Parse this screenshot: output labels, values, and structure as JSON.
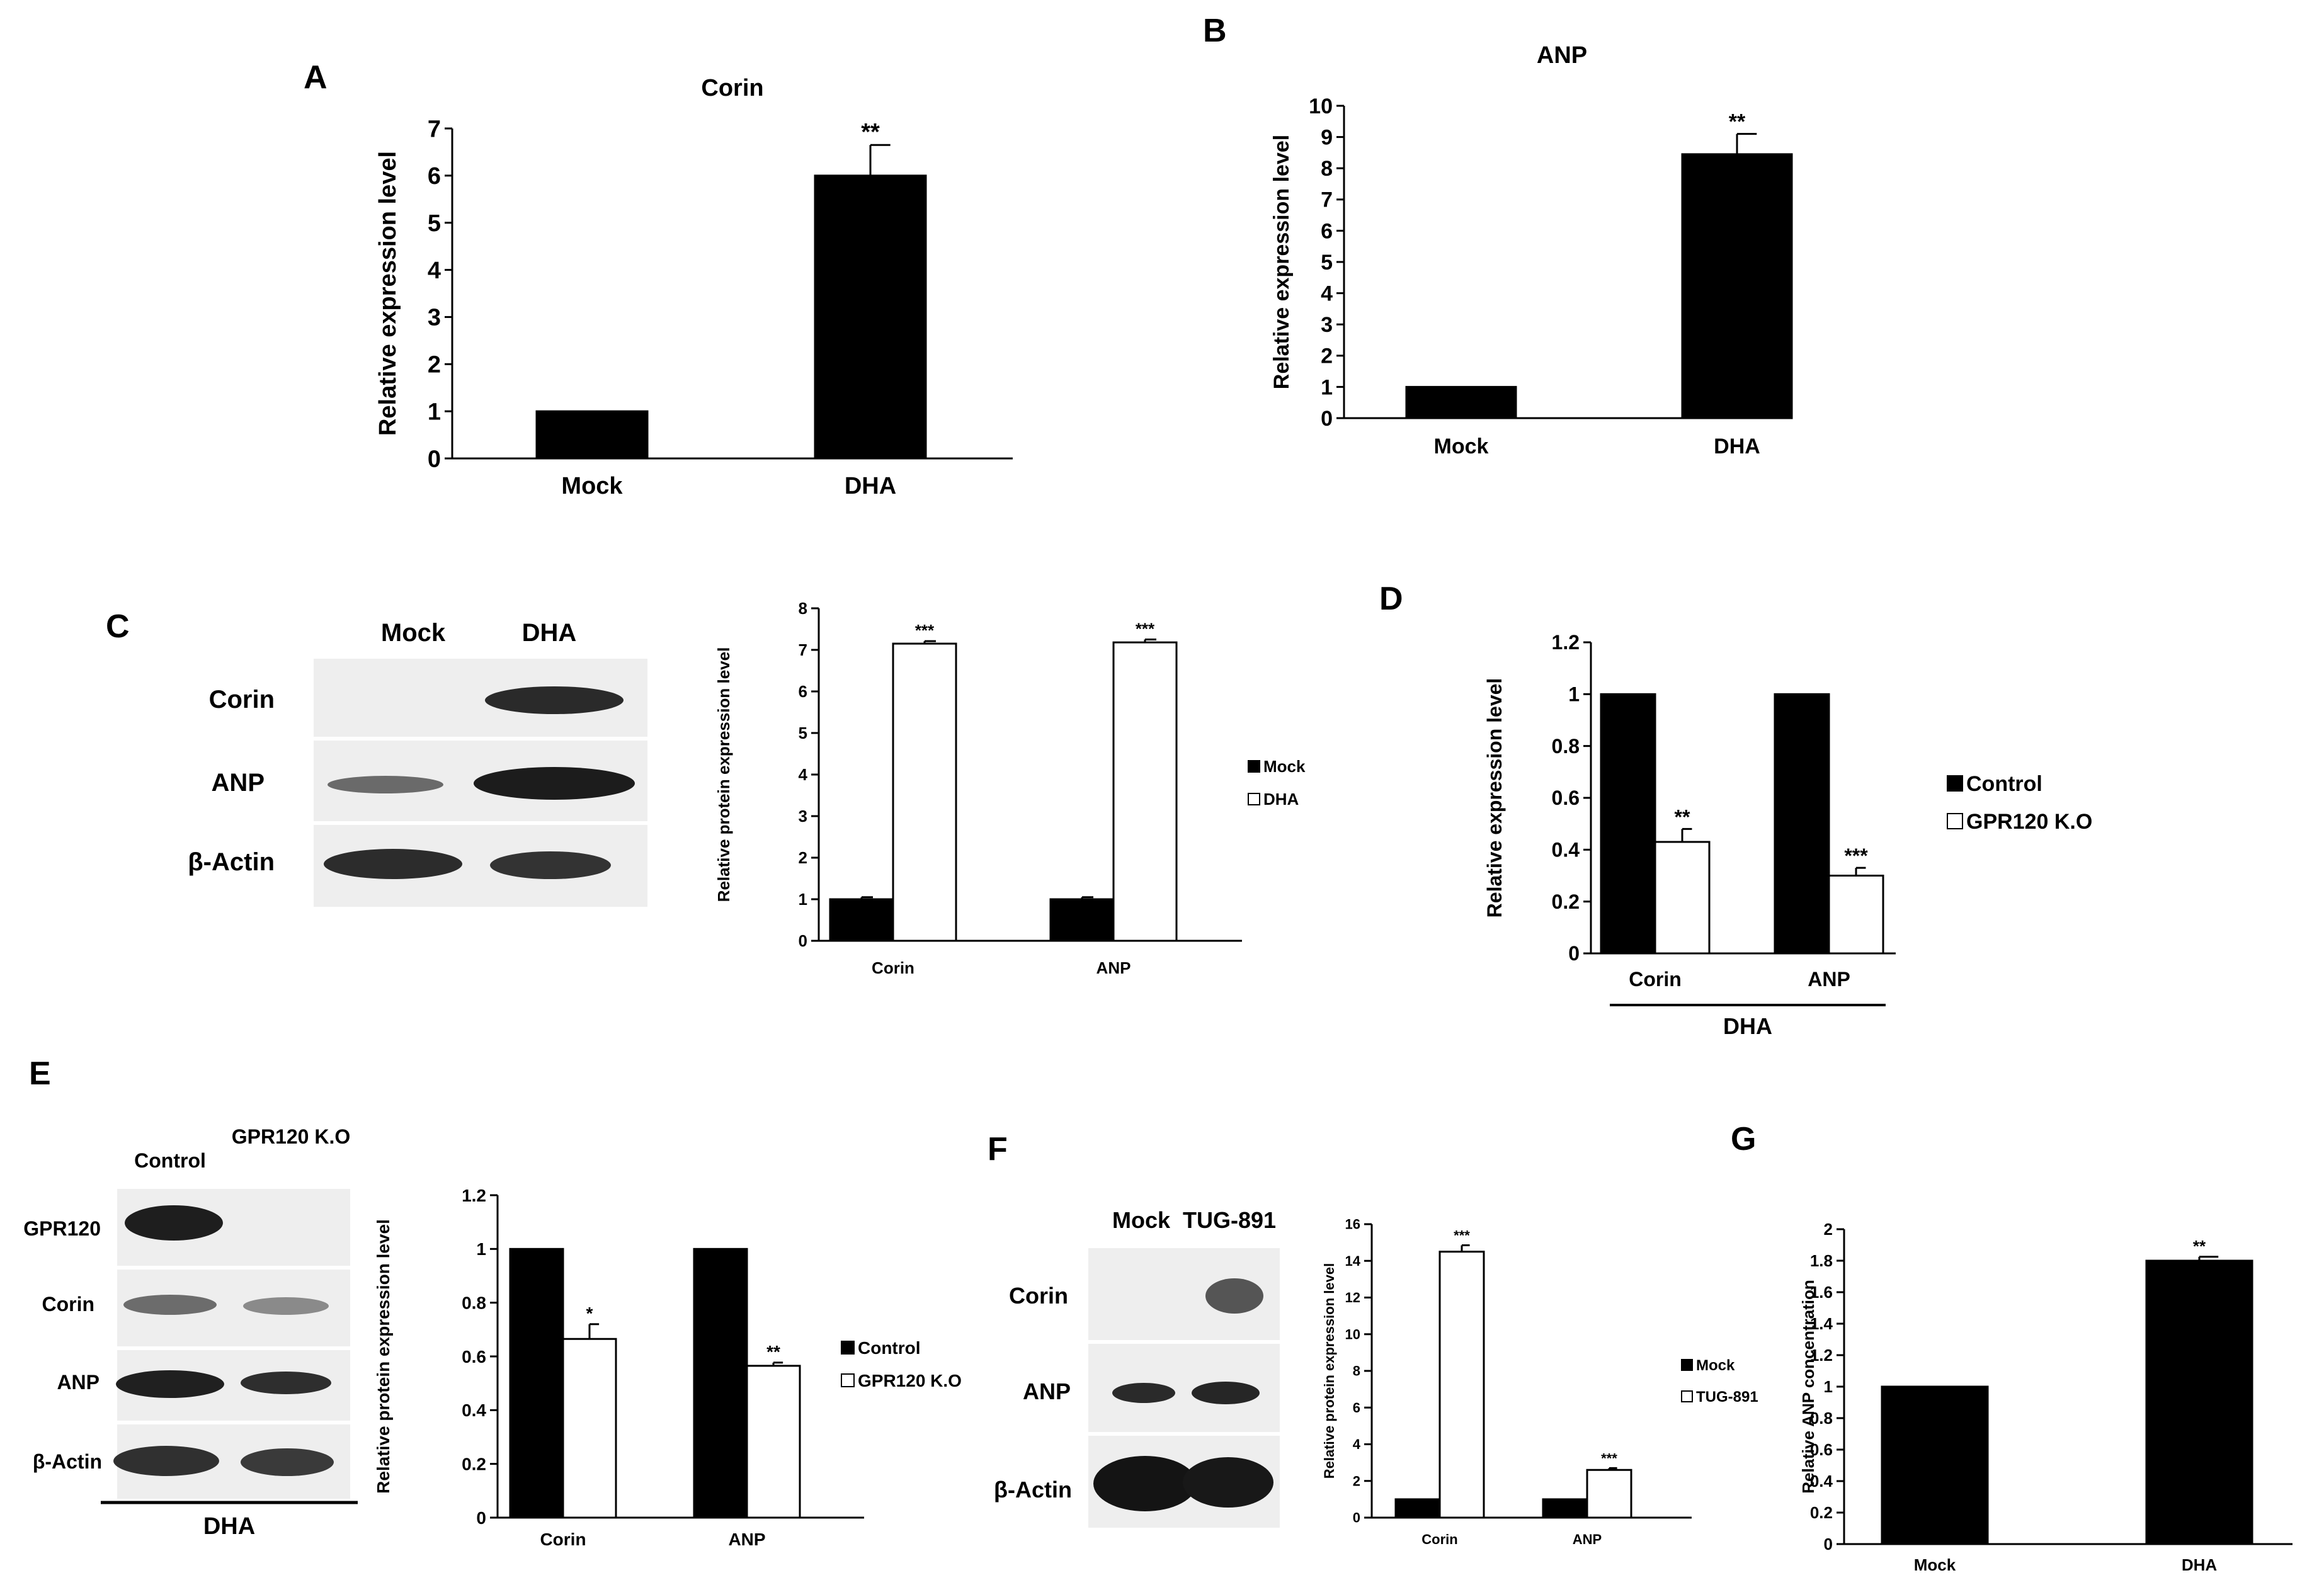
{
  "panels": [
    {
      "letter": "A"
    },
    {
      "letter": "B"
    },
    {
      "letter": "C"
    },
    {
      "letter": "D"
    },
    {
      "letter": "E"
    },
    {
      "letter": "F"
    },
    {
      "letter": "G"
    }
  ],
  "blots": {
    "C": {
      "lanes": [
        "Mock",
        "DHA"
      ],
      "rows": [
        "Corin",
        "ANP",
        "β-Actin"
      ]
    },
    "E": {
      "lanes": [
        "Control",
        "GPR120 K.O"
      ],
      "rows": [
        "GPR120",
        "Corin",
        "ANP",
        "β-Actin"
      ],
      "footer": "DHA"
    },
    "F": {
      "lanes": [
        "Mock",
        "TUG-891"
      ],
      "rows": [
        "Corin",
        "ANP",
        "β-Actin"
      ]
    }
  },
  "chart_data": [
    {
      "panel": "A",
      "type": "bar",
      "title": "Corin",
      "xlabel": "",
      "ylabel": "Relative expression level",
      "categories": [
        "Mock",
        "DHA"
      ],
      "values": [
        1,
        6
      ],
      "errors": [
        0,
        0.65
      ],
      "ylim": [
        0,
        7
      ],
      "yticks": [
        0,
        1,
        2,
        3,
        4,
        5,
        6,
        7
      ],
      "significance": [
        "",
        "**"
      ],
      "colors": {
        "bar": "#000000"
      }
    },
    {
      "panel": "B",
      "type": "bar",
      "title": "ANP",
      "xlabel": "",
      "ylabel": "Relative expression level",
      "categories": [
        "Mock",
        "DHA"
      ],
      "values": [
        1,
        8.45
      ],
      "errors": [
        0,
        0.65
      ],
      "ylim": [
        0,
        10
      ],
      "yticks": [
        0,
        1,
        2,
        3,
        4,
        5,
        6,
        7,
        8,
        9,
        10
      ],
      "significance": [
        "",
        "**"
      ],
      "colors": {
        "bar": "#000000"
      }
    },
    {
      "panel": "C",
      "type": "bar",
      "title": "",
      "xlabel": "",
      "ylabel": "Relative protein  expression level",
      "categories": [
        "Corin",
        "ANP"
      ],
      "series": [
        {
          "name": "Mock",
          "values": [
            1,
            1
          ],
          "errors": [
            0.05,
            0.05
          ],
          "significance": [
            "",
            ""
          ],
          "fill": "#000000"
        },
        {
          "name": "DHA",
          "values": [
            7.15,
            7.18
          ],
          "errors": [
            0.06,
            0.07
          ],
          "significance": [
            "***",
            "***"
          ],
          "fill": "#ffffff"
        }
      ],
      "ylim": [
        0,
        8
      ],
      "yticks": [
        0,
        1,
        2,
        3,
        4,
        5,
        6,
        7,
        8
      ],
      "legend": "right"
    },
    {
      "panel": "D",
      "type": "bar",
      "title": "",
      "xlabel": "DHA",
      "ylabel": "Relative expression level",
      "categories": [
        "Corin",
        "ANP"
      ],
      "series": [
        {
          "name": "Control",
          "values": [
            1,
            1
          ],
          "errors": [
            0,
            0
          ],
          "significance": [
            "",
            ""
          ],
          "fill": "#000000"
        },
        {
          "name": "GPR120 K.O",
          "values": [
            0.43,
            0.3
          ],
          "errors": [
            0.05,
            0.03
          ],
          "significance": [
            "**",
            "***"
          ],
          "fill": "#ffffff"
        }
      ],
      "ylim": [
        0,
        1.2
      ],
      "yticks": [
        "0",
        "0.2",
        "0.4",
        "0.6",
        "0.8",
        "1",
        "1.2"
      ],
      "legend": "right"
    },
    {
      "panel": "E",
      "type": "bar",
      "title": "",
      "xlabel": "",
      "ylabel": "Relative protein  expression level",
      "categories": [
        "Corin",
        "ANP"
      ],
      "series": [
        {
          "name": "Control",
          "values": [
            1,
            1
          ],
          "errors": [
            0,
            0
          ],
          "significance": [
            "",
            ""
          ],
          "fill": "#000000"
        },
        {
          "name": "GPR120 K.O",
          "values": [
            0.665,
            0.565
          ],
          "errors": [
            0.055,
            0.012
          ],
          "significance": [
            "*",
            "**"
          ],
          "fill": "#ffffff"
        }
      ],
      "ylim": [
        0,
        1.2
      ],
      "yticks": [
        "0",
        "0.2",
        "0.4",
        "0.6",
        "0.8",
        "1",
        "1.2"
      ],
      "legend": "right"
    },
    {
      "panel": "F",
      "type": "bar",
      "title": "",
      "xlabel": "",
      "ylabel": "Relative protein expression level",
      "categories": [
        "Corin",
        "ANP"
      ],
      "series": [
        {
          "name": "Mock",
          "values": [
            1,
            1
          ],
          "errors": [
            0,
            0
          ],
          "significance": [
            "",
            ""
          ],
          "fill": "#000000"
        },
        {
          "name": "TUG-891",
          "values": [
            14.5,
            2.6
          ],
          "errors": [
            0.35,
            0.1
          ],
          "significance": [
            "***",
            "***"
          ],
          "fill": "#ffffff"
        }
      ],
      "ylim": [
        0,
        16
      ],
      "yticks": [
        0,
        2,
        4,
        6,
        8,
        10,
        12,
        14,
        16
      ],
      "legend": "right"
    },
    {
      "panel": "G",
      "type": "bar",
      "title": "",
      "xlabel": "",
      "ylabel": "Relative ANP concentration",
      "categories": [
        "Mock",
        "DHA"
      ],
      "values": [
        1,
        1.8
      ],
      "errors": [
        0,
        0.025
      ],
      "ylim": [
        0,
        2
      ],
      "yticks": [
        "0",
        "0.2",
        "0.4",
        "0.6",
        "0.8",
        "1",
        "1.2",
        "1.4",
        "1.6",
        "1.8",
        "2"
      ],
      "significance": [
        "",
        "**"
      ],
      "colors": {
        "bar": "#000000"
      }
    }
  ]
}
